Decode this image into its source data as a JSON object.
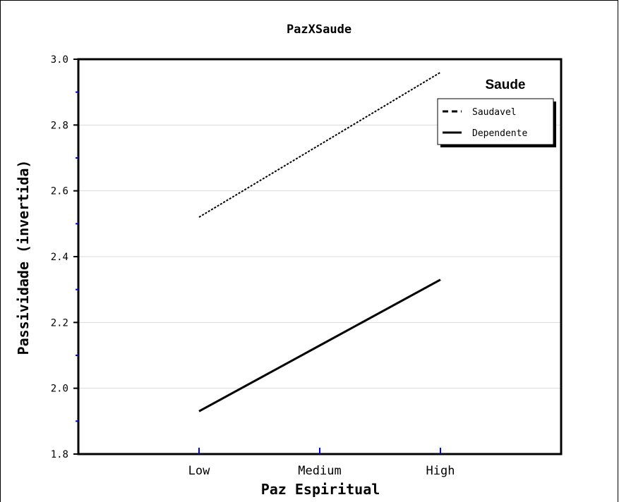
{
  "chart_data": {
    "type": "line",
    "title": "PazXSaude",
    "xlabel": "Paz Espiritual",
    "ylabel": "Passividade (invertida)",
    "categories": [
      "Low",
      "Medium",
      "High"
    ],
    "ylim": [
      1.8,
      3.0
    ],
    "yticks": [
      "3.0",
      "2.8",
      "2.6",
      "2.4",
      "2.2",
      "2.0",
      "1.8"
    ],
    "grid": true,
    "legend": {
      "title": "Saude",
      "placement": "top-right"
    },
    "series": [
      {
        "name": "Saudavel",
        "values": [
          2.52,
          2.74,
          2.96
        ],
        "style": "dashed",
        "color": "#000000"
      },
      {
        "name": "Dependente",
        "values": [
          1.93,
          2.13,
          2.33
        ],
        "style": "solid",
        "color": "#000000"
      }
    ]
  },
  "colors": {
    "grid": "#d9d9d9",
    "minor_tick": "#0000ff",
    "axis": "#000000"
  }
}
